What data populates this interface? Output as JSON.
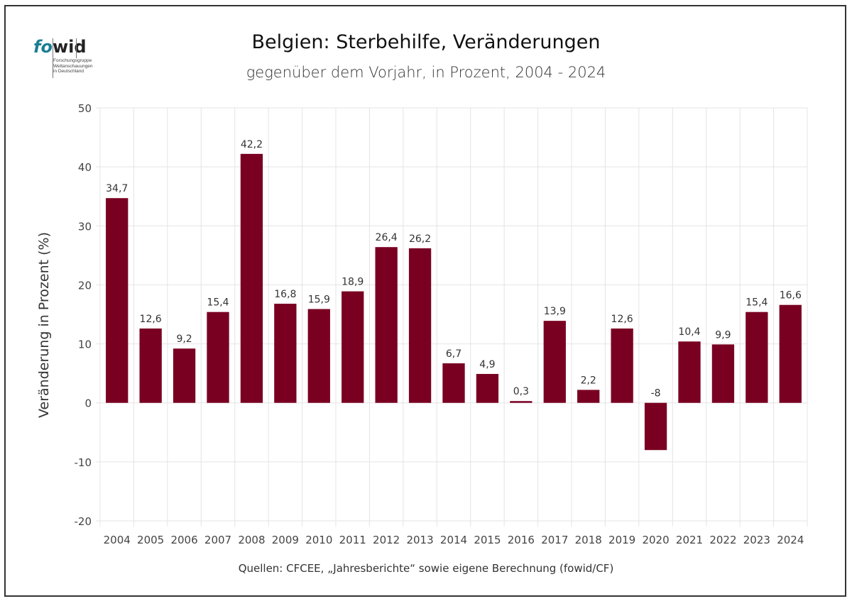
{
  "logo": {
    "brand_part1": "fo",
    "brand_part2": "wid",
    "tagline_lines": [
      "Forschungsgruppe",
      "Weltanschauungen",
      "in Deutschland"
    ]
  },
  "source_note": "Quellen: CFCEE, „Jahresberichte“ sowie eigene Berechnung (fowid/CF)",
  "colors": {
    "bar": "#7a0022",
    "grid": "#e4e4e4",
    "logo_accent": "#1a7f95"
  },
  "chart_data": {
    "type": "bar",
    "title": "Belgien: Sterbehilfe, Veränderungen",
    "subtitle": "gegenüber dem Vorjahr, in Prozent, 2004 - 2024",
    "xlabel": "",
    "ylabel": "Veränderung in Prozent (%)",
    "ylim": [
      -20,
      50
    ],
    "yticks": [
      -20,
      -10,
      0,
      10,
      20,
      30,
      40,
      50
    ],
    "ytick_labels": [
      "-20",
      "-10",
      "0",
      "10",
      "20",
      "30",
      "40",
      "50"
    ],
    "grid": true,
    "legend": "none",
    "categories": [
      "2004",
      "2005",
      "2006",
      "2007",
      "2008",
      "2009",
      "2010",
      "2011",
      "2012",
      "2013",
      "2014",
      "2015",
      "2016",
      "2017",
      "2018",
      "2019",
      "2020",
      "2021",
      "2022",
      "2023",
      "2024"
    ],
    "values": [
      34.7,
      12.6,
      9.2,
      15.4,
      42.2,
      16.8,
      15.9,
      18.9,
      26.4,
      26.2,
      6.7,
      4.9,
      0.3,
      13.9,
      2.2,
      12.6,
      -8,
      10.4,
      9.9,
      15.4,
      16.6
    ],
    "data_labels": [
      "34,7",
      "12,6",
      "9,2",
      "15,4",
      "42,2",
      "16,8",
      "15,9",
      "18,9",
      "26,4",
      "26,2",
      "6,7",
      "4,9",
      "0,3",
      "13,9",
      "2,2",
      "12,6",
      "-8",
      "10,4",
      "9,9",
      "15,4",
      "16,6"
    ]
  }
}
